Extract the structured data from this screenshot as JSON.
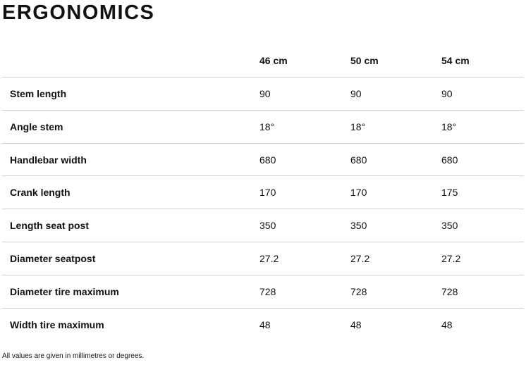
{
  "title": "ERGONOMICS",
  "table": {
    "header": [
      "46 cm",
      "50 cm",
      "54 cm"
    ],
    "rows": [
      [
        "Stem length",
        "90",
        "90",
        "90"
      ],
      [
        "Angle stem",
        "18°",
        "18°",
        "18°"
      ],
      [
        "Handlebar width",
        "680",
        "680",
        "680"
      ],
      [
        "Crank length",
        "170",
        "170",
        "175"
      ],
      [
        "Length seat post",
        "350",
        "350",
        "350"
      ],
      [
        "Diameter seatpost",
        "27.2",
        "27.2",
        "27.2"
      ],
      [
        "Diameter tire maximum",
        "728",
        "728",
        "728"
      ],
      [
        "Width tire maximum",
        "48",
        "48",
        "48"
      ]
    ]
  },
  "footnote": "All values are given in millimetres or degrees."
}
